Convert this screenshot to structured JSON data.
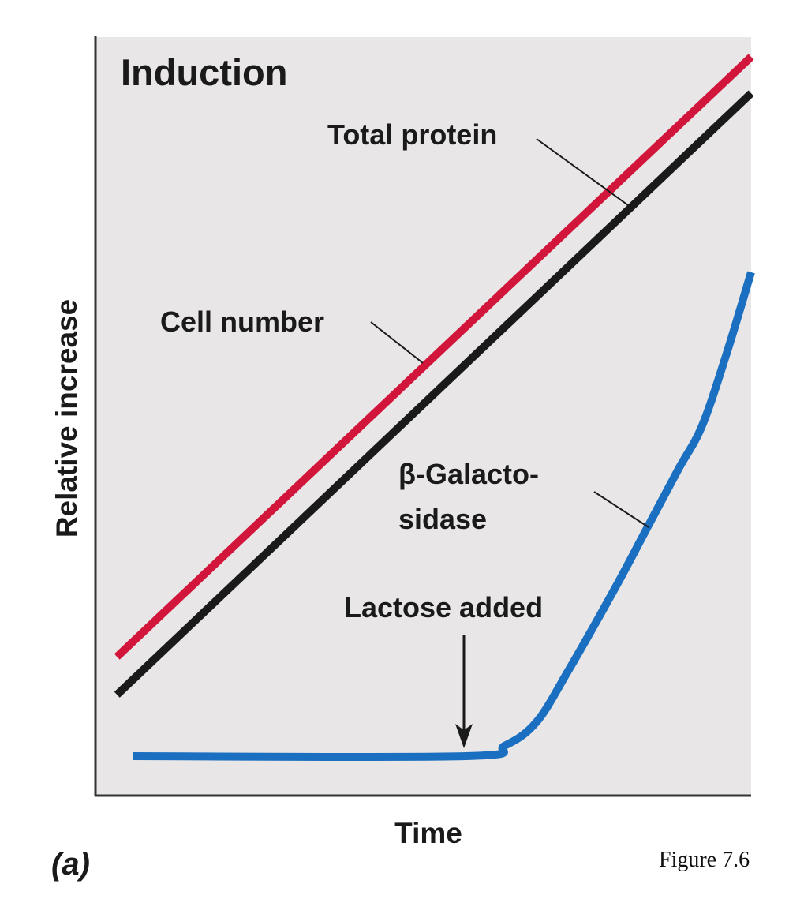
{
  "chart_data": {
    "type": "line",
    "title": "Induction",
    "xlabel": "Time",
    "ylabel": "Relative increase",
    "xlim": [
      0,
      100
    ],
    "ylim": [
      0,
      100
    ],
    "grid": false,
    "ticks": "none",
    "background": "#e8e6e6",
    "series": [
      {
        "name": "Cell number",
        "color": "#d2153a",
        "x": [
          3.4,
          100
        ],
        "y": [
          18.3,
          97.4
        ]
      },
      {
        "name": "Total protein",
        "color": "#1a1a1a",
        "x": [
          3.4,
          100
        ],
        "y": [
          13.3,
          92.6
        ]
      },
      {
        "name": "β-Galactosidase",
        "color": "#1a6fc0",
        "x": [
          5.8,
          56.5,
          62.5,
          67.3,
          72.1,
          79.3,
          84.1,
          88.9,
          92.5,
          96.2,
          100
        ],
        "y": [
          5.2,
          5.2,
          6.6,
          9.7,
          16.4,
          27.4,
          35.2,
          43.0,
          48.7,
          58.1,
          69.0
        ]
      }
    ],
    "labels": {
      "total_protein": "Total protein",
      "cell_number": "Cell number",
      "galacto_line1": "β-Galacto-",
      "galacto_line2": "sidase"
    },
    "annotations": [
      {
        "text": "Lactose added",
        "x": 56.3,
        "arrow_to_y": 6.6
      }
    ]
  },
  "panel_label": "(a)",
  "figure_caption": "Figure 7.6"
}
